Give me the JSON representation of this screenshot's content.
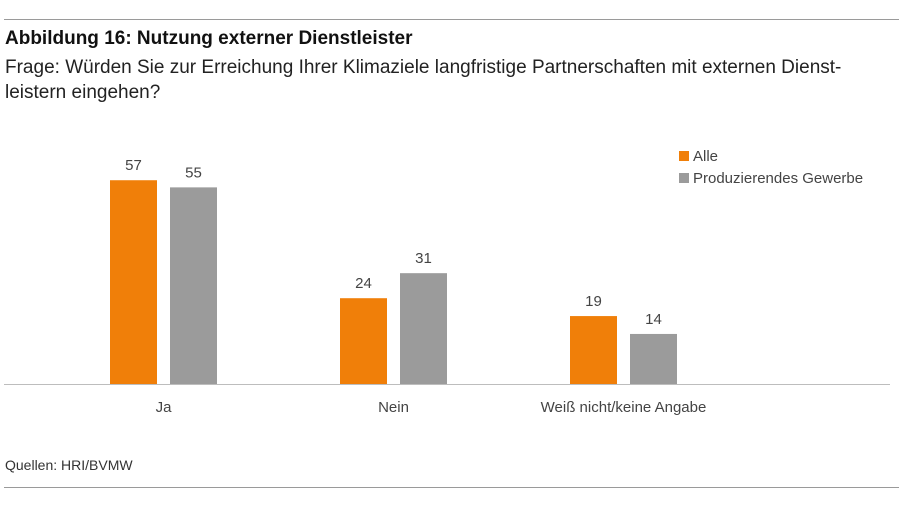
{
  "header": {
    "title": "Abbildung 16: Nutzung externer Dienstleister",
    "subtitle": "Frage: Würden Sie zur Erreichung Ihrer Klimaziele langfristige Partnerschaften mit externen Dienst-leistern eingehen?"
  },
  "footer": {
    "source": "Quellen: HRI/BVMW"
  },
  "colors": {
    "alle": "#F07F09",
    "gewerbe": "#9B9B9B"
  },
  "chart_data": {
    "type": "bar",
    "title": "Abbildung 16: Nutzung externer Dienstleister",
    "xlabel": "",
    "ylabel": "",
    "categories": [
      "Ja",
      "Nein",
      "Weiß nicht/keine Angabe"
    ],
    "series": [
      {
        "name": "Alle",
        "values": [
          57,
          24,
          19
        ]
      },
      {
        "name": "Produzierendes Gewerbe",
        "values": [
          55,
          31,
          14
        ]
      }
    ],
    "ylim": [
      0,
      100
    ],
    "grid": false,
    "legend": "top-right"
  }
}
